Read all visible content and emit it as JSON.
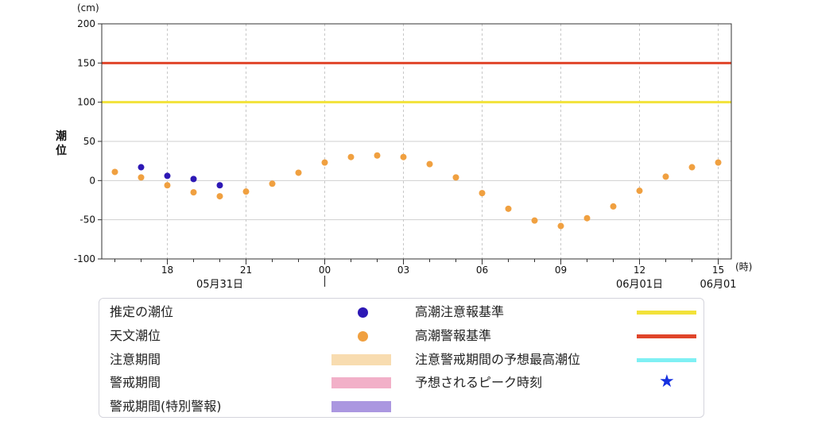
{
  "chart_data": {
    "type": "scatter",
    "y_unit": "(cm)",
    "ylabel": "潮位",
    "x_unit": "(時)",
    "ylim": [
      -100,
      200
    ],
    "yticks": [
      -100,
      -50,
      0,
      50,
      100,
      150,
      200
    ],
    "x_start_hour": 15,
    "xlim": [
      0.5,
      24.5
    ],
    "xticks": [
      {
        "pos": 3,
        "label": "18"
      },
      {
        "pos": 6,
        "label": "21"
      },
      {
        "pos": 9,
        "label": "00"
      },
      {
        "pos": 12,
        "label": "03"
      },
      {
        "pos": 15,
        "label": "06"
      },
      {
        "pos": 18,
        "label": "09"
      },
      {
        "pos": 21,
        "label": "12"
      },
      {
        "pos": 24,
        "label": "15"
      }
    ],
    "date_labels": [
      {
        "pos": 5,
        "label": "05月31日"
      },
      {
        "pos": 21,
        "label": "06月01日"
      },
      {
        "pos": 24,
        "label": "06月01"
      }
    ],
    "date_divider_pos": 9,
    "threshold_lines": [
      {
        "name": "高潮警報基準",
        "value": 150,
        "color": "#e0452a"
      },
      {
        "name": "高潮注意報基準",
        "value": 100,
        "color": "#f2e23a"
      }
    ],
    "series": [
      {
        "name": "推定の潮位",
        "color": "#2d18b5",
        "points": [
          [
            2,
            17
          ],
          [
            3,
            6
          ],
          [
            4,
            2
          ],
          [
            5,
            -6
          ]
        ]
      },
      {
        "name": "天文潮位",
        "color": "#f0a040",
        "points": [
          [
            1,
            11
          ],
          [
            2,
            4
          ],
          [
            3,
            -6
          ],
          [
            4,
            -15
          ],
          [
            5,
            -20
          ],
          [
            6,
            -14
          ],
          [
            7,
            -4
          ],
          [
            8,
            10
          ],
          [
            9,
            23
          ],
          [
            10,
            30
          ],
          [
            11,
            32
          ],
          [
            12,
            30
          ],
          [
            13,
            21
          ],
          [
            14,
            4
          ],
          [
            15,
            -16
          ],
          [
            16,
            -36
          ],
          [
            17,
            -51
          ],
          [
            18,
            -58
          ],
          [
            19,
            -48
          ],
          [
            20,
            -33
          ],
          [
            21,
            -13
          ],
          [
            22,
            5
          ],
          [
            23,
            17
          ],
          [
            24,
            23
          ]
        ]
      }
    ]
  },
  "legend": {
    "estimated": {
      "label": "推定の潮位",
      "color": "#2d18b5"
    },
    "astronomical": {
      "label": "天文潮位",
      "color": "#f0a040"
    },
    "caution_period": {
      "label": "注意期間",
      "color": "#f8dcb0"
    },
    "warning_period": {
      "label": "警戒期間",
      "color": "#f2b0c8"
    },
    "warning_period_special": {
      "label": "警戒期間(特別警報)",
      "color": "#ab97e0"
    },
    "advisory_line": {
      "label": "高潮注意報基準",
      "color": "#f2e23a"
    },
    "warning_line": {
      "label": "高潮警報基準",
      "color": "#e0452a"
    },
    "forecast_max": {
      "label": "注意警戒期間の予想最高潮位",
      "color": "#7ff0f4"
    },
    "peak_time": {
      "label": "予想されるピーク時刻",
      "symbol": "★",
      "color": "#1530e0"
    }
  }
}
